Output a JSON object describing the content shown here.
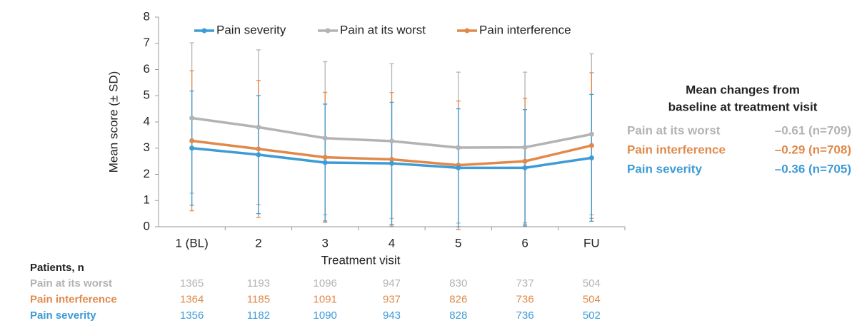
{
  "chart_data": {
    "type": "line",
    "y_label": "Mean score (± SD)",
    "x_label": "Treatment visit",
    "categories": [
      "1 (BL)",
      "2",
      "3",
      "4",
      "5",
      "6",
      "FU"
    ],
    "ylim": [
      0,
      8
    ],
    "yticks": [
      0,
      1,
      2,
      3,
      4,
      5,
      6,
      7,
      8
    ],
    "grid": false,
    "legend": "top",
    "series": [
      {
        "name": "Pain severity",
        "color": "#3d9bd6",
        "values": [
          3.0,
          2.75,
          2.45,
          2.42,
          2.25,
          2.25,
          2.63
        ],
        "errors": [
          2.18,
          2.25,
          2.23,
          2.33,
          2.25,
          2.22,
          2.42
        ]
      },
      {
        "name": "Pain at its worst",
        "color": "#b3b3b3",
        "values": [
          4.15,
          3.8,
          3.38,
          3.27,
          3.02,
          3.03,
          3.53
        ],
        "errors": [
          2.87,
          2.95,
          2.92,
          2.95,
          2.88,
          2.87,
          3.07
        ]
      },
      {
        "name": "Pain interference",
        "color": "#e0894a",
        "values": [
          3.28,
          2.97,
          2.65,
          2.57,
          2.35,
          2.5,
          3.1
        ],
        "errors": [
          2.67,
          2.61,
          2.48,
          2.55,
          2.45,
          2.4,
          2.78
        ]
      }
    ]
  },
  "summary": {
    "title": [
      "Mean changes from",
      "baseline at treatment visit"
    ],
    "rows": [
      {
        "name": "Pain at its worst",
        "value": "–0.61 (n=709)",
        "color": "#b3b3b3"
      },
      {
        "name": "Pain interference",
        "value": "–0.29 (n=708)",
        "color": "#e0894a"
      },
      {
        "name": "Pain severity",
        "value": "–0.36 (n=705)",
        "color": "#3d9bd6"
      }
    ]
  },
  "patients": {
    "title": "Patients, n",
    "rows": [
      {
        "name": "Pain at its worst",
        "color": "#b3b3b3",
        "counts": [
          "1365",
          "1193",
          "1096",
          "947",
          "830",
          "737",
          "504"
        ]
      },
      {
        "name": "Pain interference",
        "color": "#e0894a",
        "counts": [
          "1364",
          "1185",
          "1091",
          "937",
          "826",
          "736",
          "504"
        ]
      },
      {
        "name": "Pain severity",
        "color": "#3d9bd6",
        "counts": [
          "1356",
          "1182",
          "1090",
          "943",
          "828",
          "736",
          "502"
        ]
      }
    ]
  }
}
